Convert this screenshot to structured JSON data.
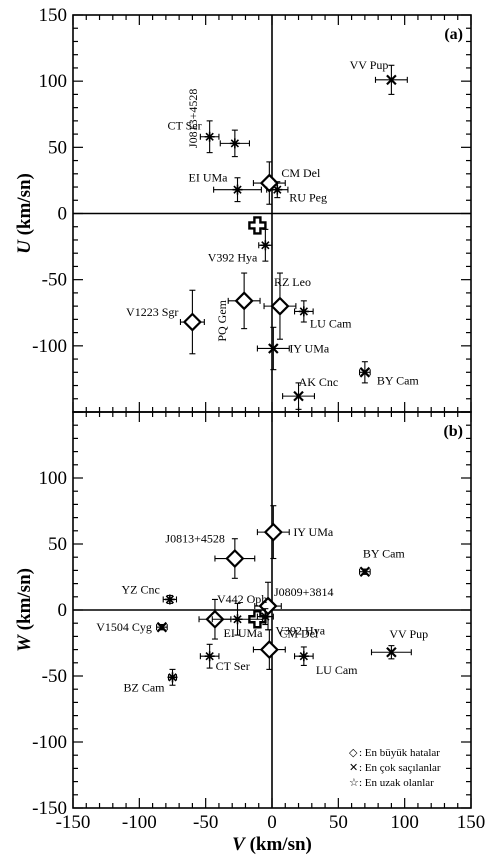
{
  "chart_data": [
    {
      "type": "scatter",
      "panel_label": "(a)",
      "xlim": [
        -150,
        150
      ],
      "ylim": [
        -150,
        150
      ],
      "ylabel": "U (km/sn)",
      "ylabel_symbol": "U",
      "ylabel_unit": "(km/sn)",
      "yticks": [
        -100,
        -50,
        0,
        50,
        100,
        150
      ],
      "reference_lines": {
        "x": 0,
        "y": 0
      },
      "points": [
        {
          "name": "VV Pup",
          "x": 90,
          "y": 101,
          "marker": "x",
          "xerr": 12,
          "yerr": 11
        },
        {
          "name": "J0813+4528",
          "x": -28,
          "y": 53,
          "marker": "star",
          "xerr": 11,
          "yerr": 10
        },
        {
          "name": "CT Ser",
          "x": -47,
          "y": 58,
          "marker": "star",
          "xerr": 7,
          "yerr": 12
        },
        {
          "name": "EI UMa",
          "x": -26,
          "y": 18,
          "marker": "star",
          "xerr": 18,
          "yerr": 9
        },
        {
          "name": "CM Del",
          "x": -2,
          "y": 23,
          "marker": "diamond",
          "xerr": 12,
          "yerr": 16
        },
        {
          "name": "RU Peg",
          "x": 4,
          "y": 18,
          "marker": "star",
          "xerr": 8,
          "yerr": 6
        },
        {
          "name": "",
          "x": -11,
          "y": -9,
          "marker": "cross",
          "xerr": 0,
          "yerr": 0
        },
        {
          "name": "V392 Hya",
          "x": -5,
          "y": -24,
          "marker": "star",
          "xerr": 5,
          "yerr": 12
        },
        {
          "name": "PQ Gem",
          "x": -21,
          "y": -66,
          "marker": "diamond",
          "xerr": 12,
          "yerr": 21
        },
        {
          "name": "RZ Leo",
          "x": 6,
          "y": -70,
          "marker": "diamond",
          "xerr": 12,
          "yerr": 25
        },
        {
          "name": "LU Cam",
          "x": 24,
          "y": -74,
          "marker": "star",
          "xerr": 7,
          "yerr": 8
        },
        {
          "name": "V1223 Sgr",
          "x": -60,
          "y": -82,
          "marker": "diamond",
          "xerr": 9,
          "yerr": 24
        },
        {
          "name": "IY UMa",
          "x": 1,
          "y": -102,
          "marker": "x",
          "xerr": 12,
          "yerr": 16
        },
        {
          "name": "BY Cam",
          "x": 70,
          "y": -120,
          "marker": "x",
          "xerr": 4,
          "yerr": 8
        },
        {
          "name": "AK Cnc",
          "x": 20,
          "y": -138,
          "marker": "x",
          "xerr": 12,
          "yerr": 10
        }
      ]
    },
    {
      "type": "scatter",
      "panel_label": "(b)",
      "xlim": [
        -150,
        150
      ],
      "ylim": [
        -150,
        150
      ],
      "xlabel": "V (km/sn)",
      "xlabel_symbol": "V",
      "xlabel_unit": "(km/sn)",
      "ylabel": "W (km/sn)",
      "ylabel_symbol": "W",
      "ylabel_unit": "(km/sn)",
      "xticks": [
        -150,
        -100,
        -50,
        0,
        50,
        100,
        150
      ],
      "yticks": [
        -150,
        -100,
        -50,
        0,
        50,
        100
      ],
      "reference_lines": {
        "x": 0,
        "y": 0
      },
      "points": [
        {
          "name": "IY UMa",
          "x": 1,
          "y": 59,
          "marker": "diamond",
          "xerr": 12,
          "yerr": 20
        },
        {
          "name": "J0813+4528",
          "x": -28,
          "y": 39,
          "marker": "diamond",
          "xerr": 15,
          "yerr": 15
        },
        {
          "name": "BY Cam",
          "x": 70,
          "y": 29,
          "marker": "x",
          "xerr": 4,
          "yerr": 2
        },
        {
          "name": "YZ Cnc",
          "x": -77,
          "y": 8,
          "marker": "star",
          "xerr": 5,
          "yerr": 3
        },
        {
          "name": "J0809+3814",
          "x": -3,
          "y": 3,
          "marker": "diamond",
          "xerr": 10,
          "yerr": 18
        },
        {
          "name": "V442 Oph",
          "x": -43,
          "y": -7,
          "marker": "diamond",
          "xerr": 12,
          "yerr": 15
        },
        {
          "name": "",
          "x": -11,
          "y": -7,
          "marker": "cross",
          "xerr": 0,
          "yerr": 0
        },
        {
          "name": "V392 Hya",
          "x": -5,
          "y": -5,
          "marker": "star",
          "xerr": 6,
          "yerr": 6
        },
        {
          "name": "EI UMa",
          "x": -26,
          "y": -7,
          "marker": "star",
          "xerr": 19,
          "yerr": 12
        },
        {
          "name": "V1504 Cyg",
          "x": -83,
          "y": -13,
          "marker": "x",
          "xerr": 4,
          "yerr": 2
        },
        {
          "name": "CM Del",
          "x": -2,
          "y": -30,
          "marker": "diamond",
          "xerr": 12,
          "yerr": 15
        },
        {
          "name": "CT Ser",
          "x": -47,
          "y": -35,
          "marker": "star",
          "xerr": 7,
          "yerr": 9
        },
        {
          "name": "LU Cam",
          "x": 24,
          "y": -35,
          "marker": "star",
          "xerr": 7,
          "yerr": 7
        },
        {
          "name": "VV Pup",
          "x": 90,
          "y": -32,
          "marker": "x",
          "xerr": 15,
          "yerr": 5
        },
        {
          "name": "BZ Cam",
          "x": -75,
          "y": -51,
          "marker": "star",
          "xerr": 3,
          "yerr": 6
        }
      ],
      "legend": {
        "position": "bottom-right",
        "entries": [
          {
            "symbol": "◇",
            "label": ": En büyük hatalar"
          },
          {
            "symbol": "✕",
            "label": ": En çok saçılanlar"
          },
          {
            "symbol": "☆",
            "label": ": En uzak olanlar"
          }
        ]
      }
    }
  ]
}
